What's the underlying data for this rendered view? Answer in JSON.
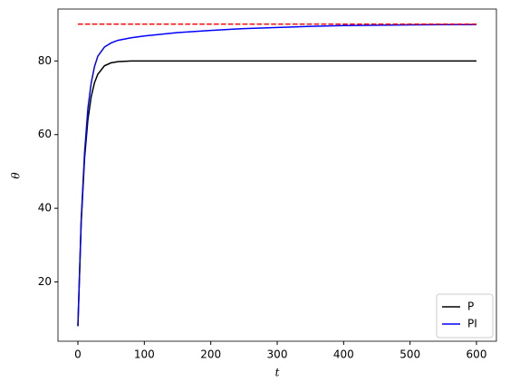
{
  "chart_data": {
    "type": "line",
    "xlabel": "t",
    "ylabel": "θ",
    "xlim": [
      -30,
      630
    ],
    "ylim": [
      3.9,
      94.1
    ],
    "xticks": [
      0,
      100,
      200,
      300,
      400,
      500,
      600
    ],
    "yticks": [
      20,
      40,
      60,
      80
    ],
    "legend": "lower right",
    "series": [
      {
        "name": "P",
        "color": "#000000",
        "x": [
          0,
          5,
          10,
          15,
          20,
          25,
          30,
          40,
          50,
          60,
          80,
          100,
          150,
          200,
          250,
          300,
          350,
          400,
          450,
          500,
          550,
          600
        ],
        "values": [
          8,
          36.3,
          53.5,
          64,
          70.3,
          74.1,
          76.4,
          78.7,
          79.5,
          79.8,
          80,
          80,
          80,
          80,
          80,
          80,
          80,
          80,
          80,
          80,
          80,
          80
        ]
      },
      {
        "name": "PI",
        "color": "#0000ff",
        "x": [
          0,
          5,
          10,
          15,
          20,
          25,
          30,
          40,
          50,
          60,
          80,
          100,
          150,
          200,
          250,
          300,
          350,
          400,
          450,
          500,
          550,
          600
        ],
        "values": [
          8,
          37,
          55,
          67,
          74,
          78.5,
          81.3,
          83.8,
          84.9,
          85.6,
          86.3,
          86.8,
          87.7,
          88.3,
          88.8,
          89.1,
          89.4,
          89.6,
          89.7,
          89.8,
          89.85,
          89.9
        ]
      },
      {
        "color": "#ff0000",
        "dashed": true,
        "x": [
          0,
          600
        ],
        "values": [
          90,
          90
        ]
      }
    ]
  }
}
